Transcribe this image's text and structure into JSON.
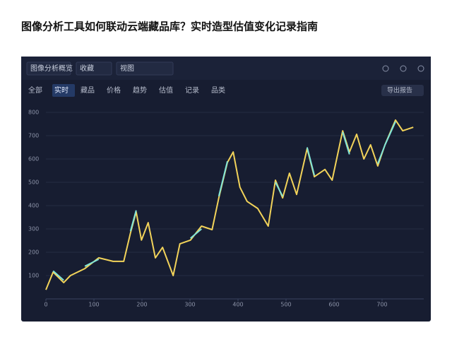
{
  "header": {
    "title": "图像分析工具如何联动云端藏品库？实时造型估值变化记录指南"
  },
  "toolbar": {
    "buttons": [
      "图像分析概览",
      "收藏",
      "视图"
    ]
  },
  "tabs": {
    "items": [
      "全部",
      "实时",
      "藏品",
      "价格",
      "趋势",
      "估值",
      "记录",
      "品类"
    ],
    "action": "导出报告"
  },
  "chart_data": {
    "type": "line",
    "x": [
      0,
      15,
      37,
      51,
      81,
      110,
      140,
      162,
      176,
      188,
      199,
      213,
      228,
      243,
      265,
      279,
      301,
      324,
      346,
      360,
      378,
      390,
      404,
      419,
      441,
      463,
      478,
      493,
      507,
      522,
      544,
      559,
      581,
      596,
      618,
      632,
      647,
      662,
      676,
      691,
      706,
      728,
      743,
      765
    ],
    "series": [
      {
        "color": "#f2d35a",
        "values": [
          39,
          115,
          70,
          100,
          130,
          176,
          161,
          161,
          282,
          373,
          252,
          327,
          176,
          221,
          100,
          236,
          252,
          312,
          297,
          433,
          585,
          630,
          479,
          418,
          388,
          312,
          509,
          433,
          539,
          448,
          645,
          524,
          555,
          509,
          721,
          630,
          706,
          600,
          661,
          570,
          661,
          767,
          721,
          736
        ]
      },
      {
        "color": "#7fe3d8",
        "values": [
          null,
          120,
          80,
          null,
          140,
          170,
          null,
          null,
          290,
          380,
          null,
          null,
          null,
          230,
          null,
          null,
          260,
          300,
          null,
          440,
          590,
          null,
          null,
          410,
          null,
          null,
          500,
          440,
          null,
          null,
          650,
          530,
          null,
          null,
          715,
          620,
          null,
          null,
          null,
          580,
          660,
          760,
          null,
          null
        ]
      }
    ],
    "xlim": [
      0,
      780
    ],
    "xticks": [
      0,
      100,
      200,
      300,
      400,
      500,
      600,
      700
    ],
    "ylim": [
      0,
      850
    ],
    "yticks": [
      100,
      200,
      300,
      400,
      500,
      600,
      700,
      800
    ],
    "grid": true
  }
}
